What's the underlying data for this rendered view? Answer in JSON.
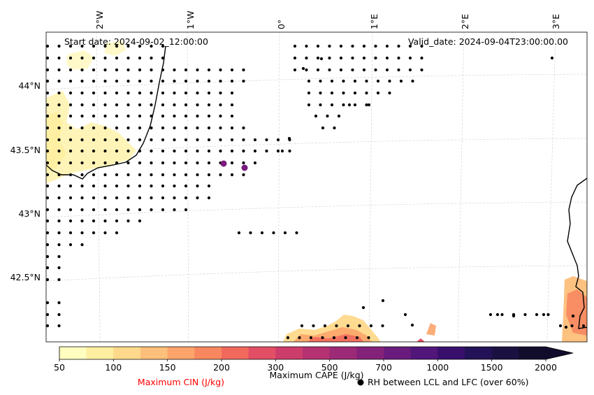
{
  "map": {
    "start_date": "Start date: 2024-09-02_12:00:00",
    "valid_date": "Valid_date: 2024-09-04T23:00:00.00",
    "lon_labels": [
      "2°W",
      "1°W",
      "0°",
      "1°E",
      "2°E",
      "3°E"
    ],
    "lat_labels": [
      "44°N",
      "43.5°N",
      "43°N",
      "42.5°N"
    ],
    "graticule": {
      "lon": [
        -2,
        -1,
        0,
        1,
        2,
        3
      ],
      "lat": [
        44,
        43.5,
        43,
        42.5
      ]
    }
  },
  "colorbar": {
    "ticks": [
      "50",
      "100",
      "150",
      "200",
      "300",
      "500",
      "700",
      "1000",
      "1500",
      "2000"
    ],
    "values": [
      50,
      75,
      100,
      125,
      150,
      175,
      200,
      250,
      300,
      400,
      500,
      600,
      700,
      850,
      1000,
      1250,
      1500,
      1750,
      2000
    ],
    "colors": [
      "#fffdbf",
      "#feeea0",
      "#fed98b",
      "#fdbf79",
      "#fca46a",
      "#f88760",
      "#f1695d",
      "#e24e64",
      "#cd3d6c",
      "#b53172",
      "#9c2a77",
      "#842279",
      "#6a1c7e",
      "#50167a",
      "#38106c",
      "#231257",
      "#1b1140",
      "#120c2c"
    ],
    "extend_color": "#120c2c",
    "cape_label": "Maximum CAPE (J/kg)",
    "cin_label": "Maximum CIN (J/kg)",
    "cin_color": "#ff0000",
    "rh_label": "RH between LCL and LFC (over 60%)"
  }
}
